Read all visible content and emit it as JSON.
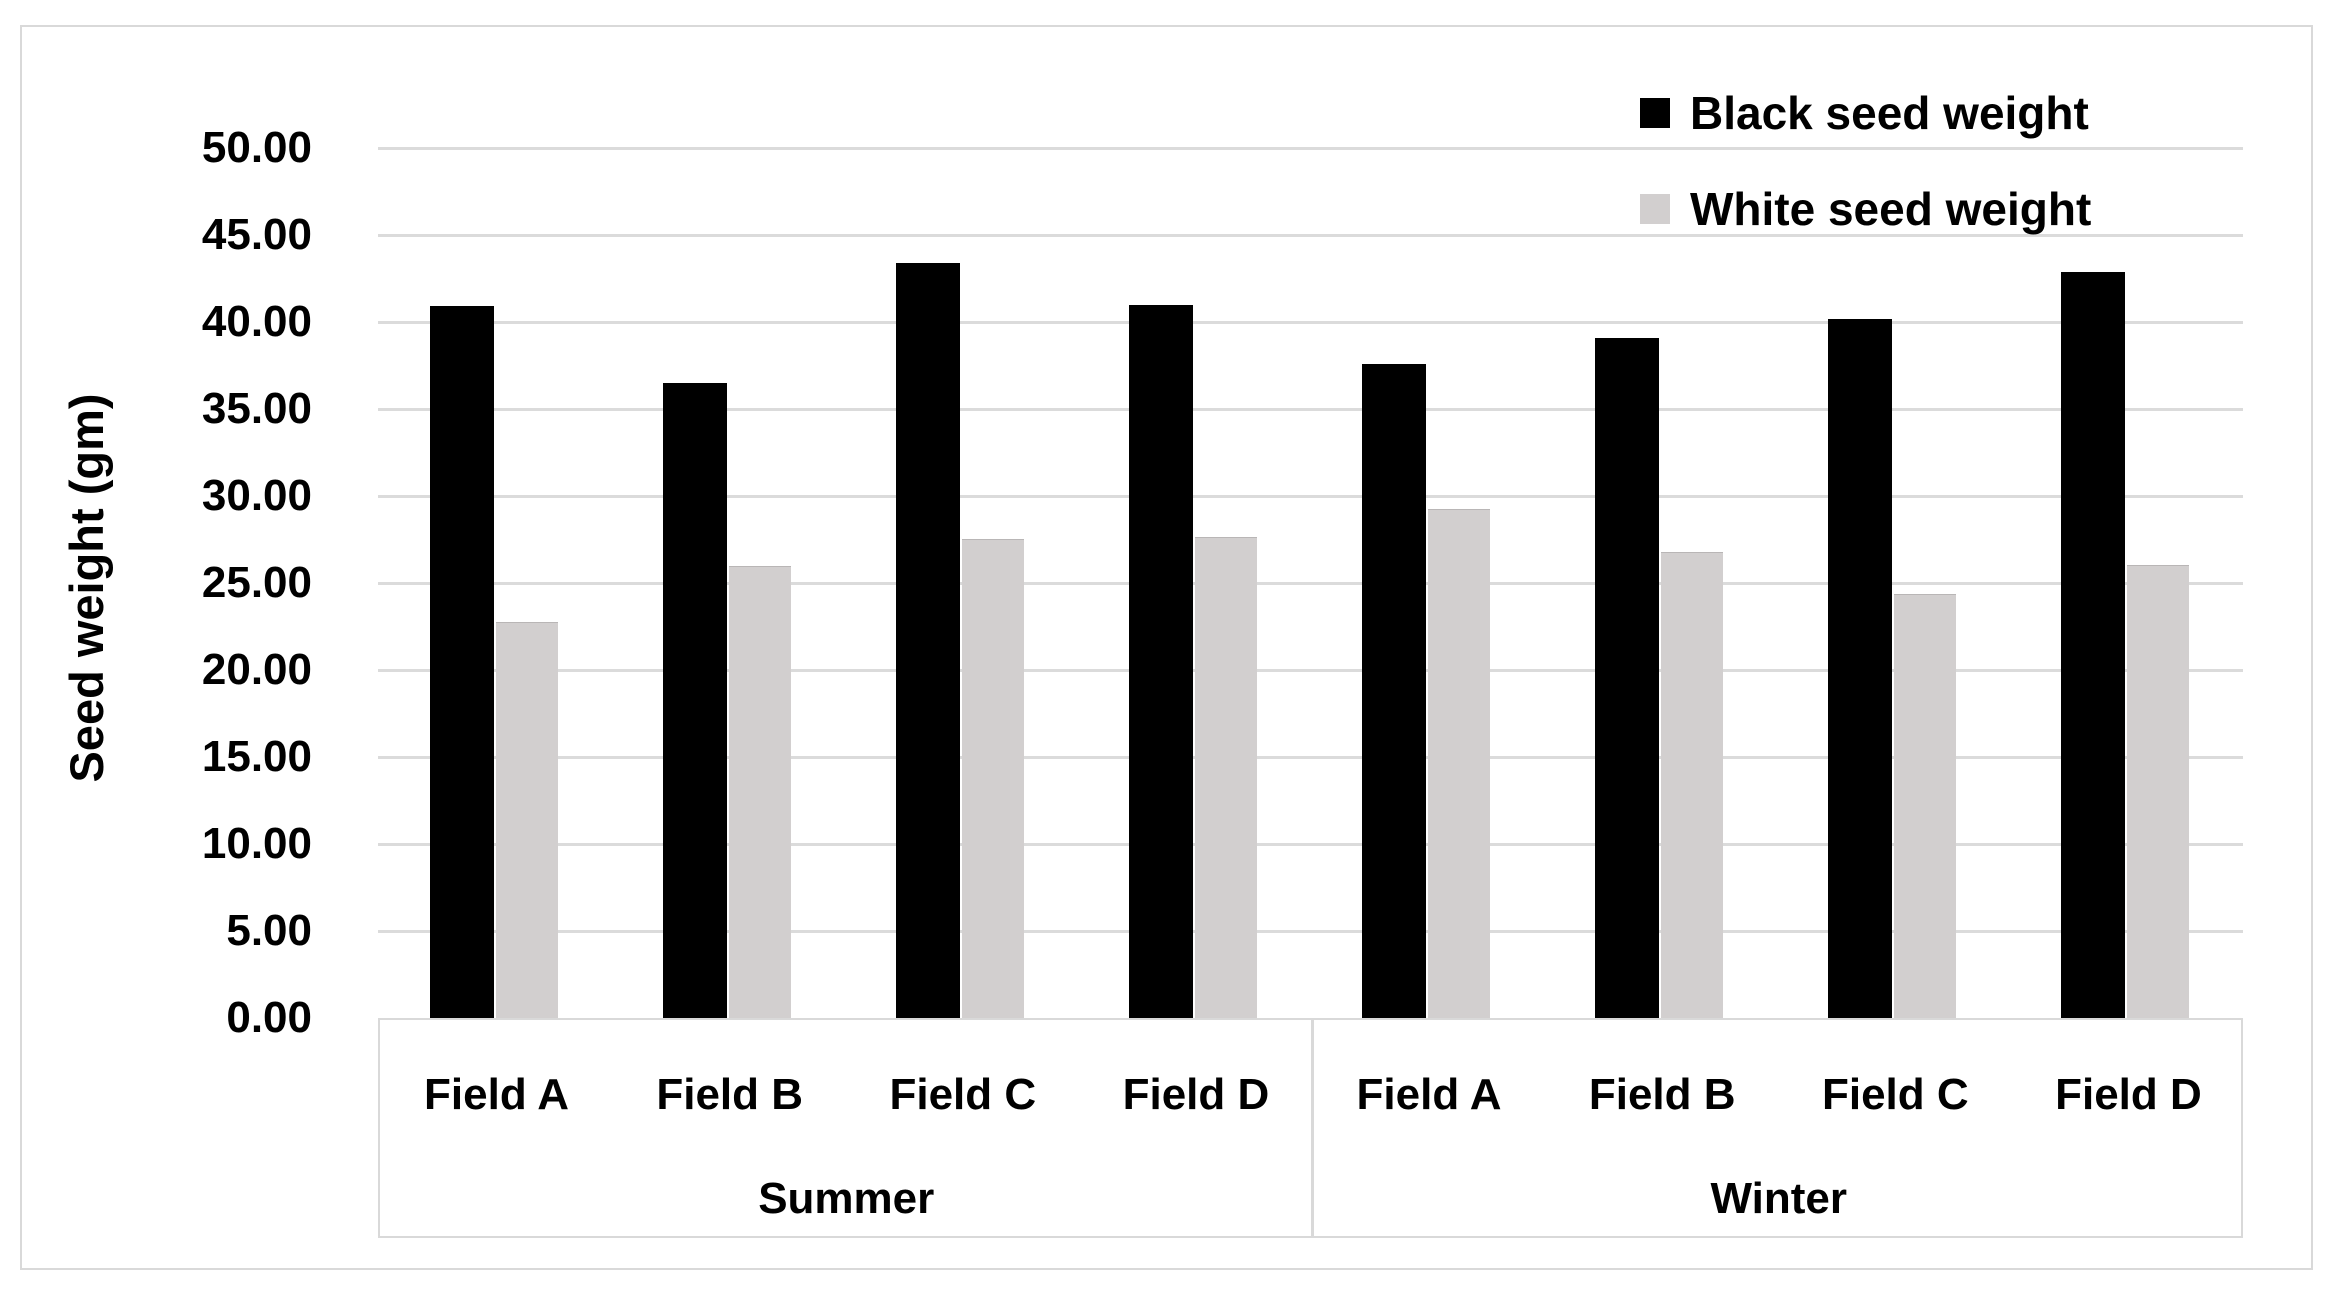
{
  "figure": {
    "background": "#ffffff",
    "frame_border_color": "#d9d9d9",
    "gridline_color": "#dbdbdb"
  },
  "chart_data": {
    "type": "bar",
    "title": "",
    "xlabel": "",
    "ylabel": "Seed weight (gm)",
    "ylim": [
      0,
      50
    ],
    "ytick_interval": 5,
    "ytick_labels": [
      "50.00",
      "45.00",
      "40.00",
      "35.00",
      "30.00",
      "25.00",
      "20.00",
      "15.00",
      "10.00",
      "5.00",
      "0.00"
    ],
    "grid": true,
    "legend_position": "top-right",
    "groups": [
      {
        "season": "Summer",
        "fields": [
          "Field A",
          "Field B",
          "Field C",
          "Field D"
        ]
      },
      {
        "season": "Winter",
        "fields": [
          "Field A",
          "Field B",
          "Field C",
          "Field D"
        ]
      }
    ],
    "categories": [
      "Field A",
      "Field B",
      "Field C",
      "Field D",
      "Field A",
      "Field B",
      "Field C",
      "Field D"
    ],
    "series": [
      {
        "name": "Black seed weight",
        "color": "#000000",
        "values": [
          40.9,
          36.5,
          43.4,
          41.0,
          37.6,
          39.1,
          40.2,
          42.9
        ]
      },
      {
        "name": "White seed weight",
        "color": "#d2cfcf",
        "values": [
          22.7,
          25.9,
          27.5,
          27.6,
          29.2,
          26.7,
          24.3,
          26.0
        ]
      }
    ]
  }
}
